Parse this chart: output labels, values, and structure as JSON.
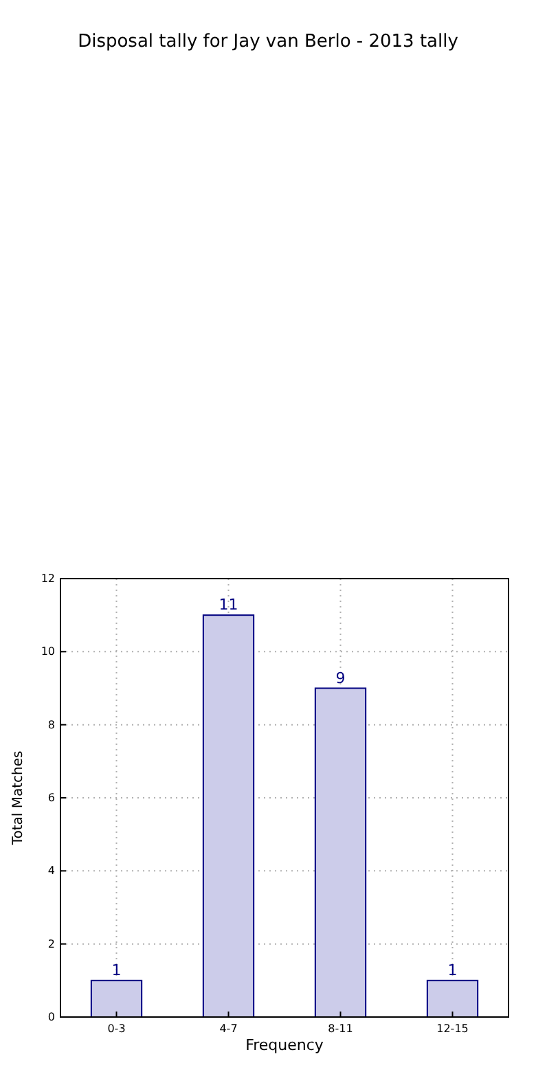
{
  "chart_data": {
    "type": "bar",
    "title": "Disposal tally for Jay van Berlo - 2013 tally",
    "xlabel": "Frequency",
    "ylabel": "Total Matches",
    "categories": [
      "0-3",
      "4-7",
      "8-11",
      "12-15"
    ],
    "values": [
      1,
      11,
      9,
      1
    ],
    "color": "#ccccea",
    "ylim": [
      0,
      12
    ],
    "yticks": [
      0,
      2,
      4,
      6,
      8,
      10,
      12
    ],
    "grid": true,
    "data_labels": true
  }
}
